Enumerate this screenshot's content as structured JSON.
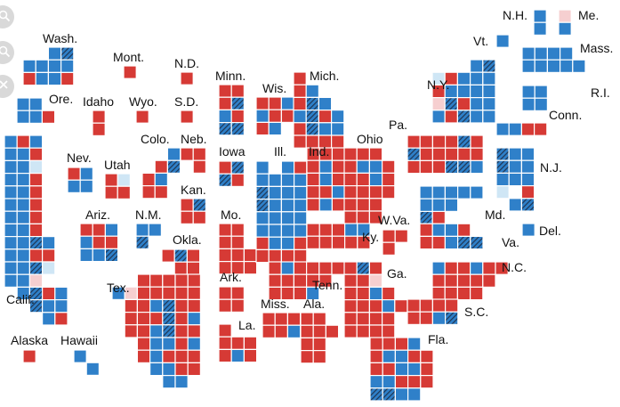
{
  "colors": {
    "dem": "#2f80c9",
    "rep": "#d63a35",
    "dem_lean": "#cfe6f5",
    "rep_lean": "#f6cfd0",
    "flip_hatch": "#1e3553",
    "background": "#ffffff",
    "label": "#111111"
  },
  "controls": {
    "zoom_in_icon": "zoom-in-icon",
    "zoom_out_icon": "zoom-out-icon",
    "close_icon": "close-icon"
  },
  "state_labels": [
    {
      "id": "wash",
      "text": "Wash."
    },
    {
      "id": "mont",
      "text": "Mont."
    },
    {
      "id": "nd",
      "text": "N.D."
    },
    {
      "id": "minn",
      "text": "Minn."
    },
    {
      "id": "mich",
      "text": "Mich."
    },
    {
      "id": "wis",
      "text": "Wis."
    },
    {
      "id": "nh",
      "text": "N.H."
    },
    {
      "id": "me",
      "text": "Me."
    },
    {
      "id": "vt",
      "text": "Vt."
    },
    {
      "id": "mass",
      "text": "Mass."
    },
    {
      "id": "ny",
      "text": "N.Y."
    },
    {
      "id": "ri",
      "text": "R.I."
    },
    {
      "id": "conn",
      "text": "Conn."
    },
    {
      "id": "ore",
      "text": "Ore."
    },
    {
      "id": "idaho",
      "text": "Idaho"
    },
    {
      "id": "wyo",
      "text": "Wyo."
    },
    {
      "id": "sd",
      "text": "S.D."
    },
    {
      "id": "pa",
      "text": "Pa."
    },
    {
      "id": "colo",
      "text": "Colo."
    },
    {
      "id": "neb",
      "text": "Neb."
    },
    {
      "id": "ohio",
      "text": "Ohio"
    },
    {
      "id": "iowa",
      "text": "Iowa"
    },
    {
      "id": "ill",
      "text": "Ill."
    },
    {
      "id": "ind",
      "text": "Ind."
    },
    {
      "id": "nev",
      "text": "Nev."
    },
    {
      "id": "utah",
      "text": "Utah"
    },
    {
      "id": "nj",
      "text": "N.J."
    },
    {
      "id": "kan",
      "text": "Kan."
    },
    {
      "id": "ariz",
      "text": "Ariz."
    },
    {
      "id": "nm",
      "text": "N.M."
    },
    {
      "id": "mo",
      "text": "Mo."
    },
    {
      "id": "md",
      "text": "Md."
    },
    {
      "id": "wva",
      "text": "W.Va."
    },
    {
      "id": "del",
      "text": "Del."
    },
    {
      "id": "okla",
      "text": "Okla."
    },
    {
      "id": "ky",
      "text": "Ky."
    },
    {
      "id": "va",
      "text": "Va."
    },
    {
      "id": "nc",
      "text": "N.C."
    },
    {
      "id": "ga",
      "text": "Ga."
    },
    {
      "id": "ark",
      "text": "Ark."
    },
    {
      "id": "tenn",
      "text": "Tenn."
    },
    {
      "id": "calif",
      "text": "Calif."
    },
    {
      "id": "tex",
      "text": "Tex."
    },
    {
      "id": "miss",
      "text": "Miss."
    },
    {
      "id": "ala",
      "text": "Ala."
    },
    {
      "id": "sc",
      "text": "S.C."
    },
    {
      "id": "la",
      "text": "La."
    },
    {
      "id": "fla",
      "text": "Fla."
    },
    {
      "id": "alaska",
      "text": "Alaska"
    },
    {
      "id": "hawaii",
      "text": "Hawaii"
    }
  ],
  "district_tiles": [
    {
      "state": "wash",
      "rows": [
        "..DF",
        "DDDD",
        "RDDR"
      ]
    },
    {
      "state": "ore",
      "rows": [
        "DD.",
        "DDR"
      ]
    },
    {
      "state": "calif",
      "rows": [
        "DRD.",
        "DDR.",
        "DDd.",
        "DDR.",
        "DDR.",
        "DDR.",
        "DDR.",
        "DDR.",
        "DDFD",
        "DDRR",
        "DDFd",
        "DDr.",
        ".DFRD",
        "..FDD",
        "...DR"
      ]
    },
    {
      "state": "idaho",
      "rows": [
        "R",
        "R"
      ]
    },
    {
      "state": "mont",
      "rows": [
        "R"
      ]
    },
    {
      "state": "wyo",
      "rows": [
        "R"
      ]
    },
    {
      "state": "nd",
      "rows": [
        "R"
      ]
    },
    {
      "state": "sd",
      "rows": [
        "R"
      ]
    },
    {
      "state": "nev",
      "rows": [
        "RD",
        "DD"
      ]
    },
    {
      "state": "utah",
      "rows": [
        "Rd",
        "RR"
      ]
    },
    {
      "state": "colo",
      "rows": [
        "..D",
        ".RF",
        "RD.",
        "RR."
      ]
    },
    {
      "state": "neb",
      "rows": [
        "RR",
        ".R"
      ]
    },
    {
      "state": "kan",
      "rows": [
        "RF",
        "RR"
      ]
    },
    {
      "state": "ariz",
      "rows": [
        "RRD",
        "DRR",
        "DDF"
      ]
    },
    {
      "state": "nm",
      "rows": [
        "DD",
        "F."
      ]
    },
    {
      "state": "okla",
      "rows": [
        "RFR",
        ".RR"
      ]
    },
    {
      "state": "tex",
      "rows": [
        "..RRRRR",
        "DrRRRRR",
        ".RRDFRR",
        ".RRRFRD",
        ".RRDFRR",
        "..RDDRD",
        "..RDRRR",
        "...DDRR",
        "....DD."
      ]
    },
    {
      "state": "minn",
      "rows": [
        "RR",
        "RF",
        "DR",
        "FF"
      ]
    },
    {
      "state": "iowa",
      "rows": [
        "RF",
        "FR"
      ]
    },
    {
      "state": "mo",
      "rows": [
        "RR",
        "RR",
        "RRR",
        "RRR"
      ]
    },
    {
      "state": "ark",
      "rows": [
        "RR",
        "RR"
      ]
    },
    {
      "state": "la",
      "rows": [
        "R",
        "RRR",
        "RDR"
      ]
    },
    {
      "state": "wis",
      "rows": [
        "RRDR",
        "DRRD",
        "RD"
      ]
    },
    {
      "state": "ill",
      "rows": [
        "D.DR",
        "DDDD",
        "FDDD",
        "FDDD",
        "DDDD",
        "DDDD",
        "RDDR",
        "RRRR"
      ]
    },
    {
      "state": "mich",
      "rows": [
        "R",
        "RD",
        "RFD",
        "DFRD",
        "RFDD",
        "RRRR"
      ]
    },
    {
      "state": "ind",
      "rows": [
        "RRR",
        "RDR",
        "RDR",
        "RRD",
        "RDR"
      ]
    },
    {
      "state": "ohio",
      "rows": [
        "RRR",
        "RDDR",
        "RRDR",
        "RRRR",
        "RRR",
        "RRR"
      ]
    },
    {
      "state": "ky",
      "rows": [
        "RRRDD",
        "RRRRR"
      ]
    },
    {
      "state": "tenn",
      "rows": [
        "RDRRRR",
        "RRRRR",
        "RRRD"
      ]
    },
    {
      "state": "miss",
      "rows": [
        "RRR",
        "RRDR"
      ]
    },
    {
      "state": "ala",
      "rows": [
        "RR",
        "RRR",
        "RR",
        "RR"
      ]
    },
    {
      "state": "ga",
      "rows": [
        "RFR",
        "RRr",
        "RRDR",
        "RRRDR",
        "RRRR",
        "RRRR"
      ]
    },
    {
      "state": "fla",
      "rows": [
        "RRRD",
        "RDDRR",
        "RRDDR",
        "DDRRR",
        "FFDD"
      ]
    },
    {
      "state": "wva",
      "rows": [
        "RR",
        "R"
      ]
    },
    {
      "state": "pa",
      "rows": [
        "RRRRFR",
        "FRRRRR",
        "RRRFFD"
      ]
    },
    {
      "state": "va",
      "rows": [
        "FR.",
        "RDDR",
        "RRDFF"
      ]
    },
    {
      "state": "nc",
      "rows": [
        "DRRDRR",
        "RRRRR",
        "RRRR"
      ]
    },
    {
      "state": "sc",
      "rows": [
        "RRRR",
        "RRDF"
      ]
    },
    {
      "state": "md",
      "rows": [
        "DDDDD",
        "DDD"
      ]
    },
    {
      "state": "del",
      "rows": [
        "D"
      ]
    },
    {
      "state": "nj",
      "rows": [
        "FDD",
        "FDD",
        "DDD",
        "d.R",
        ".DF"
      ]
    },
    {
      "state": "ny",
      "rows": [
        "...DF",
        "dRDDD",
        "RDDDD",
        "rFRDD",
        "DRFDD"
      ]
    },
    {
      "state": "conn",
      "rows": [
        "DDRR"
      ]
    },
    {
      "state": "ri",
      "rows": [
        "DD",
        "DD"
      ]
    },
    {
      "state": "mass",
      "rows": [
        "DDDD",
        "DDDDD"
      ]
    },
    {
      "state": "vt",
      "rows": [
        "D"
      ]
    },
    {
      "state": "nh",
      "rows": [
        "D",
        "D"
      ]
    },
    {
      "state": "me",
      "rows": [
        "r",
        "D"
      ]
    },
    {
      "state": "alaska",
      "rows": [
        "R"
      ]
    },
    {
      "state": "hawaii",
      "rows": [
        "D.",
        ".D"
      ]
    }
  ]
}
